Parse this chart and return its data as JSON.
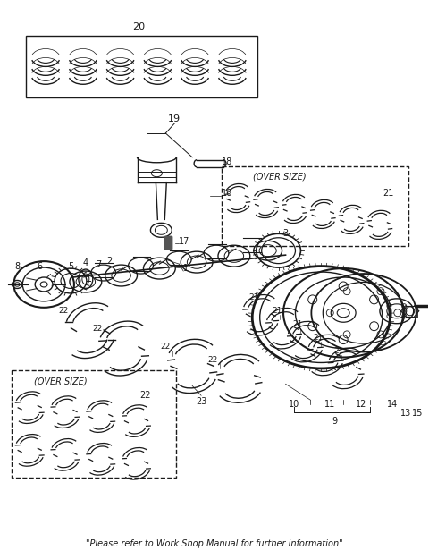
{
  "footer_text": "\"Please refer to Work Shop Manual for further information\"",
  "background_color": "#ffffff",
  "line_color": "#1a1a1a",
  "fig_width": 4.8,
  "fig_height": 6.25,
  "dpi": 100
}
